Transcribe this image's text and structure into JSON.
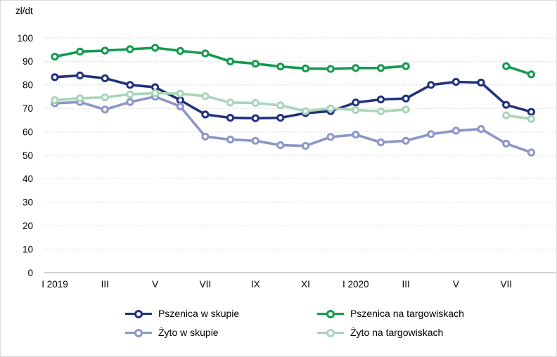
{
  "chart_data": {
    "type": "line",
    "title": "",
    "unit": "zł/dt",
    "ylim": [
      0,
      100
    ],
    "ytick_step": 10,
    "grid": "horizontal-dotted",
    "legend_position": "bottom",
    "categories": [
      "I 2019",
      "II",
      "III",
      "IV",
      "V",
      "VI",
      "VII",
      "VIII",
      "IX",
      "X",
      "XI",
      "XII",
      "I 2020",
      "II",
      "III",
      "IV",
      "V",
      "VI",
      "VII",
      "VIII"
    ],
    "visible_tick_indices": [
      0,
      2,
      4,
      6,
      8,
      10,
      12,
      14,
      16,
      18
    ],
    "draw_order": [
      0,
      2,
      1,
      3
    ],
    "series": [
      {
        "id": "pszenica-w-skupie",
        "name": "Pszenica w skupie",
        "color": "#22317e",
        "values": [
          83.3,
          84.0,
          82.8,
          80.0,
          79.0,
          73.5,
          67.4,
          66.0,
          65.8,
          66.0,
          68.0,
          68.8,
          72.5,
          73.8,
          74.2,
          80.0,
          81.3,
          81.0,
          71.5,
          68.5
        ]
      },
      {
        "id": "pszenica-na-targowiskach",
        "name": "Pszenica na targowiskach",
        "color": "#149a50",
        "values": [
          92.0,
          94.2,
          94.6,
          95.2,
          95.8,
          94.5,
          93.4,
          90.0,
          89.0,
          87.8,
          87.0,
          86.8,
          87.2,
          87.2,
          88.0,
          null,
          null,
          null,
          88.0,
          84.5
        ]
      },
      {
        "id": "zyto-w-skupie",
        "name": "Żyto w skupie",
        "color": "#8c96c8",
        "values": [
          72.2,
          72.7,
          69.5,
          72.7,
          75.0,
          70.8,
          58.0,
          56.7,
          56.2,
          54.3,
          54.0,
          57.8,
          58.8,
          55.5,
          56.2,
          59.0,
          60.5,
          61.2,
          55.0,
          51.2
        ]
      },
      {
        "id": "zyto-na-targowiskach",
        "name": "Żyto na targowiskach",
        "color": "#a8d5b8",
        "values": [
          73.5,
          74.3,
          74.7,
          76.0,
          76.5,
          76.3,
          75.2,
          72.5,
          72.3,
          71.3,
          68.8,
          70.0,
          69.3,
          68.7,
          69.5,
          null,
          null,
          null,
          67.0,
          65.5
        ]
      }
    ]
  }
}
